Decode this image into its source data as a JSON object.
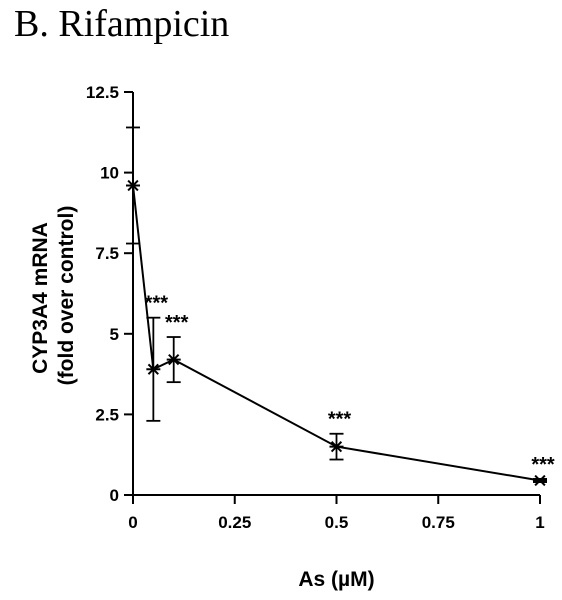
{
  "panel_title": "B. Rifampicin",
  "chart_data": {
    "type": "line",
    "title": "B. Rifampicin",
    "xlabel": "As (µM)",
    "ylabel_lines": [
      "CYP3A4 mRNA",
      "(fold over control)"
    ],
    "xlim": [
      0,
      1
    ],
    "ylim": [
      0,
      12.5
    ],
    "x_ticks": [
      0,
      0.25,
      0.5,
      0.75,
      1
    ],
    "x_tick_labels": [
      "0",
      "0.25",
      "0.5",
      "0.75",
      "1"
    ],
    "y_ticks": [
      0,
      2.5,
      5,
      7.5,
      10,
      12.5
    ],
    "y_tick_labels": [
      "0",
      "2.5",
      "5",
      "7.5",
      "10",
      "12.5"
    ],
    "grid": false,
    "marker": "asterisk",
    "series": [
      {
        "points": [
          {
            "x": 0,
            "y": 9.6,
            "err_low": 7.8,
            "err_high": 11.4,
            "sig": ""
          },
          {
            "x": 0.05,
            "y": 3.9,
            "err_low": 2.3,
            "err_high": 5.5,
            "sig": "***"
          },
          {
            "x": 0.1,
            "y": 4.2,
            "err_low": 3.5,
            "err_high": 4.9,
            "sig": "***"
          },
          {
            "x": 0.5,
            "y": 1.5,
            "err_low": 1.1,
            "err_high": 1.9,
            "sig": "***"
          },
          {
            "x": 1,
            "y": 0.45,
            "err_low": 0.4,
            "err_high": 0.5,
            "sig": "***"
          }
        ]
      }
    ]
  }
}
